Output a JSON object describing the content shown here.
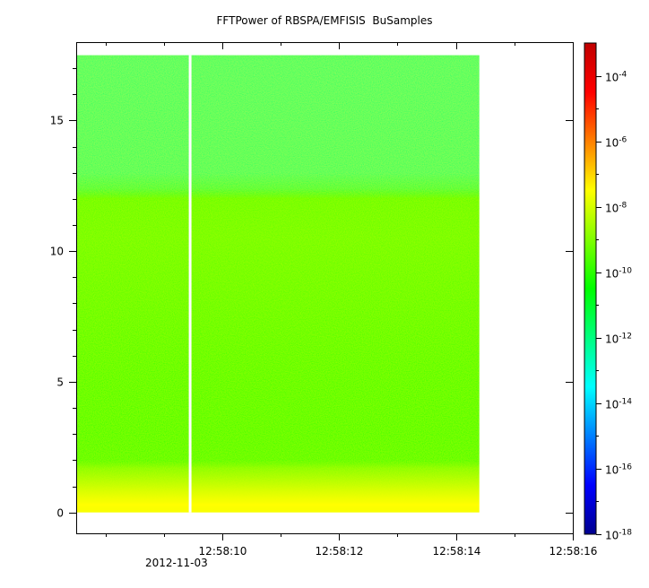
{
  "chart_data": {
    "type": "heatmap",
    "title": "FFTPower of RBSPA/EMFISIS  BuSamples",
    "xlabel": "",
    "ylabel": "",
    "x_axis": {
      "type": "time",
      "range_seconds": [
        7.5,
        16.0
      ],
      "major_ticks": [
        {
          "t": 10,
          "label": "12:58:10"
        },
        {
          "t": 12,
          "label": "12:58:12"
        },
        {
          "t": 14,
          "label": "12:58:14"
        },
        {
          "t": 16,
          "label": "12:58:16"
        }
      ],
      "minor_ticks": [
        8,
        9,
        11,
        13,
        15
      ],
      "date_label": "2012-11-03",
      "data_extent_seconds": [
        7.5,
        14.4
      ],
      "gap_seconds": 9.45
    },
    "y_axis": {
      "range": [
        -0.8,
        18.0
      ],
      "ticks": [
        0,
        5,
        10,
        15
      ],
      "tick_labels": [
        "0",
        "5",
        "10",
        "15"
      ],
      "data_extent": [
        0,
        17.5
      ]
    },
    "colorbar": {
      "scale": "log",
      "range": [
        1e-18,
        0.001
      ],
      "ticks": [
        {
          "base": "10",
          "exp": "-4",
          "value": 0.0001
        },
        {
          "base": "10",
          "exp": "-6",
          "value": 1e-06
        },
        {
          "base": "10",
          "exp": "-8",
          "value": 1e-08
        },
        {
          "base": "10",
          "exp": "-10",
          "value": 1e-10
        },
        {
          "base": "10",
          "exp": "-12",
          "value": 1e-12
        },
        {
          "base": "10",
          "exp": "-14",
          "value": 1e-14
        },
        {
          "base": "10",
          "exp": "-16",
          "value": 1e-16
        },
        {
          "base": "10",
          "exp": "-18",
          "value": 1e-18
        }
      ],
      "colormap": [
        "#00008f",
        "#0000ff",
        "#0080ff",
        "#00ffff",
        "#00ff80",
        "#00ff00",
        "#80ff00",
        "#ffff00",
        "#ff8000",
        "#ff0000",
        "#c00000"
      ]
    },
    "frequency_profile": [
      {
        "f": 0.0,
        "log10_power": -7.6
      },
      {
        "f": 0.3,
        "log10_power": -7.5
      },
      {
        "f": 0.8,
        "log10_power": -8.0
      },
      {
        "f": 1.3,
        "log10_power": -8.6
      },
      {
        "f": 1.7,
        "log10_power": -9.1
      },
      {
        "f": 2.0,
        "log10_power": -10.0
      },
      {
        "f": 3.0,
        "log10_power": -10.1
      },
      {
        "f": 5.0,
        "log10_power": -10.0
      },
      {
        "f": 8.0,
        "log10_power": -9.7
      },
      {
        "f": 10.5,
        "log10_power": -9.5
      },
      {
        "f": 12.0,
        "log10_power": -9.6
      },
      {
        "f": 12.4,
        "log10_power": -11.2
      },
      {
        "f": 13.0,
        "log10_power": -11.6
      },
      {
        "f": 17.5,
        "log10_power": -11.7
      }
    ]
  }
}
